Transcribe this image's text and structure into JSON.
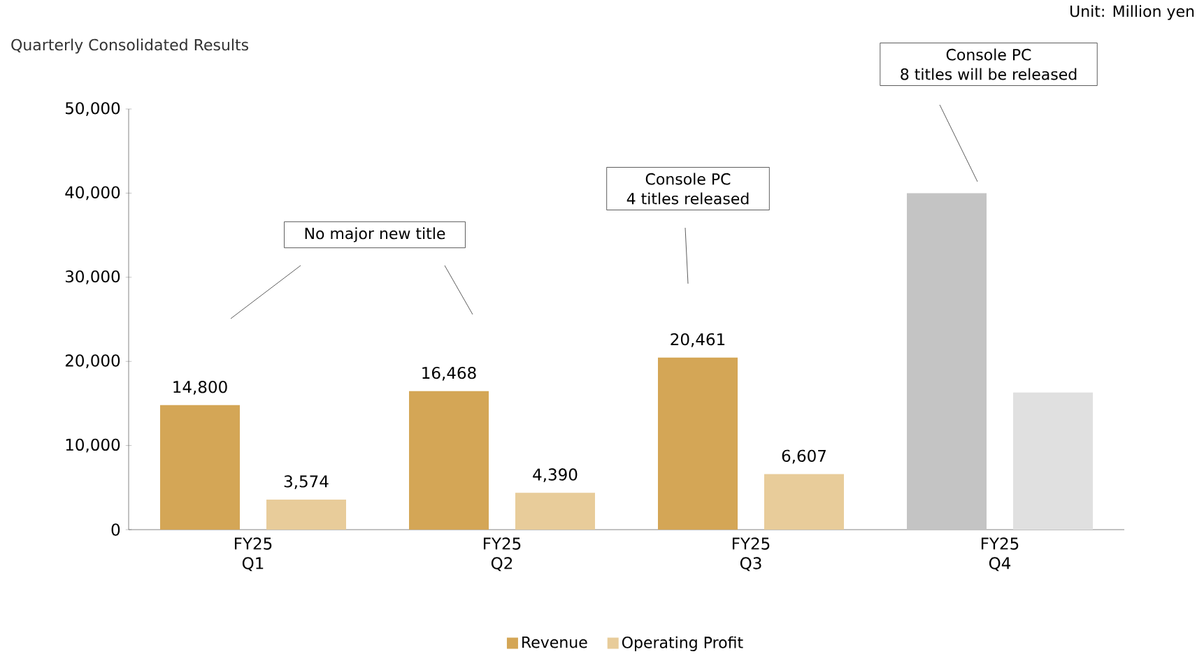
{
  "chart_data": {
    "type": "bar",
    "title": "Quarterly Consolidated Results",
    "categories": [
      "FY25 Q1",
      "FY25 Q2",
      "FY25 Q3",
      "FY25 Q4"
    ],
    "series": [
      {
        "name": "Revenue",
        "color": "#d4a656",
        "colors": [
          "#d4a656",
          "#d4a656",
          "#d4a656",
          "#c4c4c4"
        ],
        "values": [
          14800,
          16468,
          20461,
          40000
        ],
        "value_labels": [
          "14,800",
          "16,468",
          "20,461",
          null
        ]
      },
      {
        "name": "Operating Profit",
        "color": "#e8cc9a",
        "colors": [
          "#e8cc9a",
          "#e8cc9a",
          "#e8cc9a",
          "#e0e0e0"
        ],
        "values": [
          3574,
          4390,
          6607,
          16300
        ],
        "value_labels": [
          "3,574",
          "4,390",
          "6,607",
          null
        ]
      }
    ],
    "ylim": [
      0,
      50000
    ],
    "yticks": [
      {
        "value": 0,
        "label": "0"
      },
      {
        "value": 10000,
        "label": "10,000"
      },
      {
        "value": 20000,
        "label": "20,000"
      },
      {
        "value": 30000,
        "label": "30,000"
      },
      {
        "value": 40000,
        "label": "40,000"
      },
      {
        "value": 50000,
        "label": "50,000"
      }
    ],
    "legend": "bottom",
    "grid": false,
    "annotations": [
      "Unit: Million yen",
      "No major new title",
      "Console PC",
      "4 titles released",
      "Console PC",
      "8 titles will be released"
    ]
  }
}
